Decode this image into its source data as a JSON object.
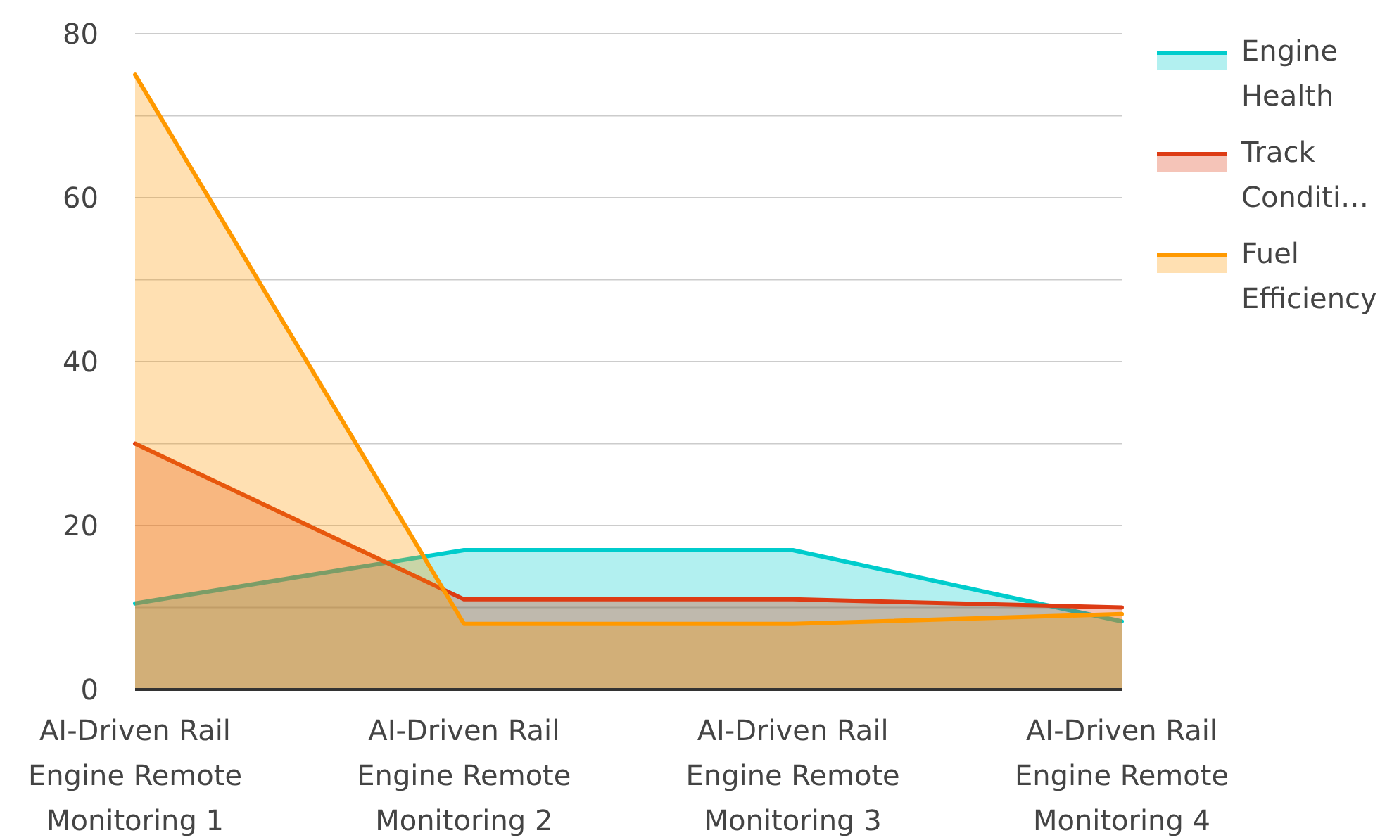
{
  "chart_data": {
    "type": "area",
    "categories": [
      "AI-Driven Rail Engine Remote Monitoring 1",
      "AI-Driven Rail Engine Remote Monitoring 2",
      "AI-Driven Rail Engine Remote Monitoring 3",
      "AI-Driven Rail Engine Remote Monitoring 4"
    ],
    "series": [
      {
        "name": "Engine Health",
        "color": "#00cccc",
        "values": [
          10.5,
          17,
          17,
          8.3
        ]
      },
      {
        "name": "Track Conditi…",
        "color": "#dd3b14",
        "values": [
          30,
          11,
          11,
          10
        ]
      },
      {
        "name": "Fuel Efficiency",
        "color": "#ff9900",
        "values": [
          75,
          8,
          8,
          9.2
        ]
      }
    ],
    "ylim": [
      0,
      80
    ],
    "yticks": [
      0,
      {
        "value": 10,
        "label": null
      },
      20,
      {
        "value": 30,
        "label": null
      },
      40,
      {
        "value": 50,
        "label": null
      },
      60,
      {
        "value": 70,
        "label": null
      },
      80
    ],
    "grid": "y",
    "legend": "top right"
  }
}
